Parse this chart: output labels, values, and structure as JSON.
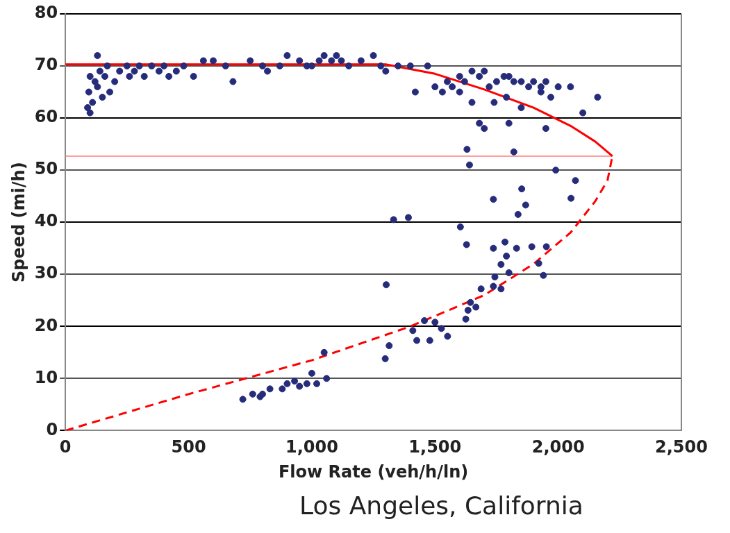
{
  "chart_data": {
    "type": "scatter",
    "xlabel": "Flow Rate (veh/h/ln)",
    "ylabel": "Speed (mi/h)",
    "annotations": [
      "Los Angeles, California"
    ],
    "xlim": [
      0,
      2500
    ],
    "xticks": [
      0,
      500,
      {
        "value": 1000,
        "label": "1,000"
      },
      {
        "value": 1500,
        "label": "1,500"
      },
      {
        "value": 2000,
        "label": "2,000"
      },
      {
        "value": 2500,
        "label": "2,500"
      }
    ],
    "ylim": [
      0,
      80
    ],
    "yticks": [
      0,
      10,
      20,
      30,
      40,
      50,
      60,
      70,
      80
    ],
    "grid": "y",
    "legend": false,
    "series": [
      {
        "color": "#262c7a",
        "marker": "circle",
        "x": [
          90,
          100,
          110,
          95,
          120,
          130,
          100,
          140,
          150,
          160,
          170,
          130,
          180,
          200,
          220,
          250,
          260,
          280,
          300,
          320,
          350,
          380,
          400,
          420,
          450,
          480,
          520,
          560,
          600,
          650,
          680,
          750,
          800,
          820,
          870,
          900,
          950,
          980,
          1000,
          1030,
          1050,
          1080,
          1100,
          1120,
          1150,
          1200,
          1250,
          1280,
          1300,
          1350,
          1400,
          1420,
          1470,
          1500,
          1530,
          1550,
          1570,
          1600,
          1620,
          1650,
          1680,
          1700,
          1720,
          1750,
          1780,
          1800,
          1820,
          1850,
          1880,
          1900,
          1930,
          1950,
          1970,
          2000,
          2050,
          2100,
          2160,
          1650,
          1680,
          1700,
          1600,
          1740,
          1790,
          1800,
          1850,
          1950,
          1930,
          1630,
          1640,
          1820,
          1990,
          2070,
          1737,
          1603,
          1628,
          1737,
          1784,
          1831,
          1893,
          1952,
          1790,
          1768,
          1800,
          1921,
          1940,
          1743,
          1737,
          1687,
          1768,
          1644,
          1666,
          1634,
          1625,
          1457,
          1500,
          1526,
          1410,
          1426,
          1479,
          1551,
          1302,
          1314,
          1298,
          1332,
          1392,
          1852,
          1868,
          1837,
          2052,
          720,
          760,
          790,
          800,
          830,
          880,
          900,
          930,
          950,
          980,
          1000,
          1020,
          1050,
          1060
        ],
        "values": [
          62,
          61,
          63,
          65,
          67,
          66,
          68,
          69,
          64,
          68,
          70,
          72,
          65,
          67,
          69,
          70,
          68,
          69,
          70,
          68,
          70,
          69,
          70,
          68,
          69,
          70,
          68,
          71,
          71,
          70,
          67,
          71,
          70,
          69,
          70,
          72,
          71,
          70,
          70,
          71,
          72,
          71,
          72,
          71,
          70,
          71,
          72,
          70,
          69,
          70,
          70,
          65,
          70,
          66,
          65,
          67,
          66,
          68,
          67,
          69,
          68,
          69,
          66,
          67,
          68,
          68,
          67,
          67,
          66,
          67,
          66,
          67,
          64,
          66,
          66,
          61,
          64,
          63,
          59,
          58,
          65,
          63,
          64,
          59,
          62,
          58,
          65,
          54,
          51,
          53.5,
          50,
          48,
          44.4,
          39.1,
          35.7,
          35,
          36.2,
          35,
          35.3,
          35.3,
          33.5,
          31.9,
          30.3,
          32.1,
          29.8,
          29.5,
          27.7,
          27.2,
          27.2,
          24.6,
          23.7,
          23.1,
          21.4,
          21.1,
          20.8,
          19.6,
          19.2,
          17.3,
          17.3,
          18.1,
          28,
          16.3,
          13.8,
          40.5,
          40.9,
          46.4,
          43.3,
          41.5,
          44.6,
          6,
          7,
          6.5,
          7,
          8,
          8,
          9,
          9.5,
          8.5,
          9,
          11,
          9,
          15,
          10
        ]
      },
      {
        "type": "line",
        "color": "#ff0000",
        "line_style": "solid",
        "marker": "none",
        "x": [
          0,
          1300,
          1500,
          1700,
          1900,
          2050,
          2150,
          2200,
          2220
        ],
        "values": [
          70.3,
          70.3,
          68.5,
          65.5,
          62,
          58.5,
          55.5,
          53.5,
          52.7
        ]
      },
      {
        "type": "line",
        "color": "#ff0000",
        "line_style": "dashed",
        "marker": "none",
        "x": [
          0,
          500,
          1000,
          1400,
          1700,
          1900,
          2050,
          2150,
          2200,
          2220
        ],
        "values": [
          0,
          7,
          13.5,
          20,
          26,
          32,
          38,
          44,
          48,
          52.7
        ]
      },
      {
        "type": "line",
        "color": "#ff8080",
        "line_style": "solid",
        "marker": "none",
        "x": [
          0,
          2220
        ],
        "values": [
          52.7,
          52.7
        ]
      }
    ]
  }
}
